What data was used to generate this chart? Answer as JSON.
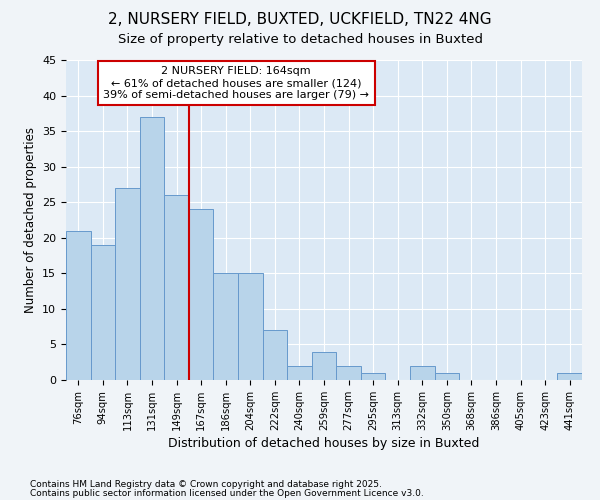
{
  "title1": "2, NURSERY FIELD, BUXTED, UCKFIELD, TN22 4NG",
  "title2": "Size of property relative to detached houses in Buxted",
  "xlabel": "Distribution of detached houses by size in Buxted",
  "ylabel": "Number of detached properties",
  "categories": [
    "76sqm",
    "94sqm",
    "113sqm",
    "131sqm",
    "149sqm",
    "167sqm",
    "186sqm",
    "204sqm",
    "222sqm",
    "240sqm",
    "259sqm",
    "277sqm",
    "295sqm",
    "313sqm",
    "332sqm",
    "350sqm",
    "368sqm",
    "386sqm",
    "405sqm",
    "423sqm",
    "441sqm"
  ],
  "values": [
    21,
    19,
    27,
    37,
    26,
    24,
    15,
    15,
    7,
    2,
    4,
    2,
    1,
    0,
    2,
    1,
    0,
    0,
    0,
    0,
    1
  ],
  "bar_color": "#b8d4ea",
  "bar_edge_color": "#6699cc",
  "fig_bg_color": "#f0f4f8",
  "plot_bg_color": "#dce9f5",
  "grid_color": "#ffffff",
  "vline_color": "#cc0000",
  "vline_x_index": 4.5,
  "annotation_text": "2 NURSERY FIELD: 164sqm\n← 61% of detached houses are smaller (124)\n39% of semi-detached houses are larger (79) →",
  "annotation_box_color": "#cc0000",
  "ylim": [
    0,
    45
  ],
  "yticks": [
    0,
    5,
    10,
    15,
    20,
    25,
    30,
    35,
    40,
    45
  ],
  "footnote1": "Contains HM Land Registry data © Crown copyright and database right 2025.",
  "footnote2": "Contains public sector information licensed under the Open Government Licence v3.0."
}
